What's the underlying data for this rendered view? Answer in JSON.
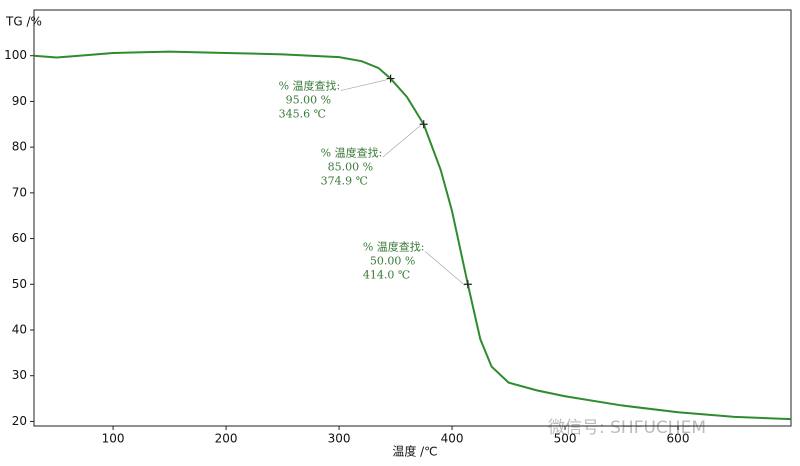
{
  "chart_data": {
    "type": "line",
    "y_label": "TG /%",
    "x_label": "温度 /℃",
    "watermark": "微信号: SHFUCHEM",
    "x": [
      30,
      50,
      70,
      100,
      150,
      200,
      250,
      300,
      320,
      335,
      345.6,
      360,
      374.9,
      390,
      400,
      414,
      425,
      435,
      450,
      475,
      500,
      550,
      600,
      650,
      700
    ],
    "series": [
      {
        "name": "TG",
        "color": "#2e8b2e",
        "values": [
          100,
          99.6,
          100,
          100.6,
          100.9,
          100.6,
          100.3,
          99.7,
          98.8,
          97.3,
          95,
          91,
          85,
          75,
          66,
          50,
          38,
          32,
          28.5,
          26.8,
          25.5,
          23.5,
          22,
          21,
          20.5
        ]
      }
    ],
    "annotations": [
      {
        "title": "% 温度查找:",
        "value_label": "95.00 %",
        "temp_label": "345.6 ℃",
        "x": 345.6,
        "y": 95
      },
      {
        "title": "% 温度查找:",
        "value_label": "85.00 %",
        "temp_label": "374.9 ℃",
        "x": 374.9,
        "y": 85
      },
      {
        "title": "% 温度查找:",
        "value_label": "50.00 %",
        "temp_label": "414.0 ℃",
        "x": 414.0,
        "y": 50
      }
    ],
    "xlim": [
      30,
      700
    ],
    "ylim": [
      19,
      110
    ],
    "xticks": [
      100,
      200,
      300,
      400,
      500,
      600
    ],
    "yticks": [
      20,
      30,
      40,
      50,
      60,
      70,
      80,
      90,
      100
    ]
  }
}
